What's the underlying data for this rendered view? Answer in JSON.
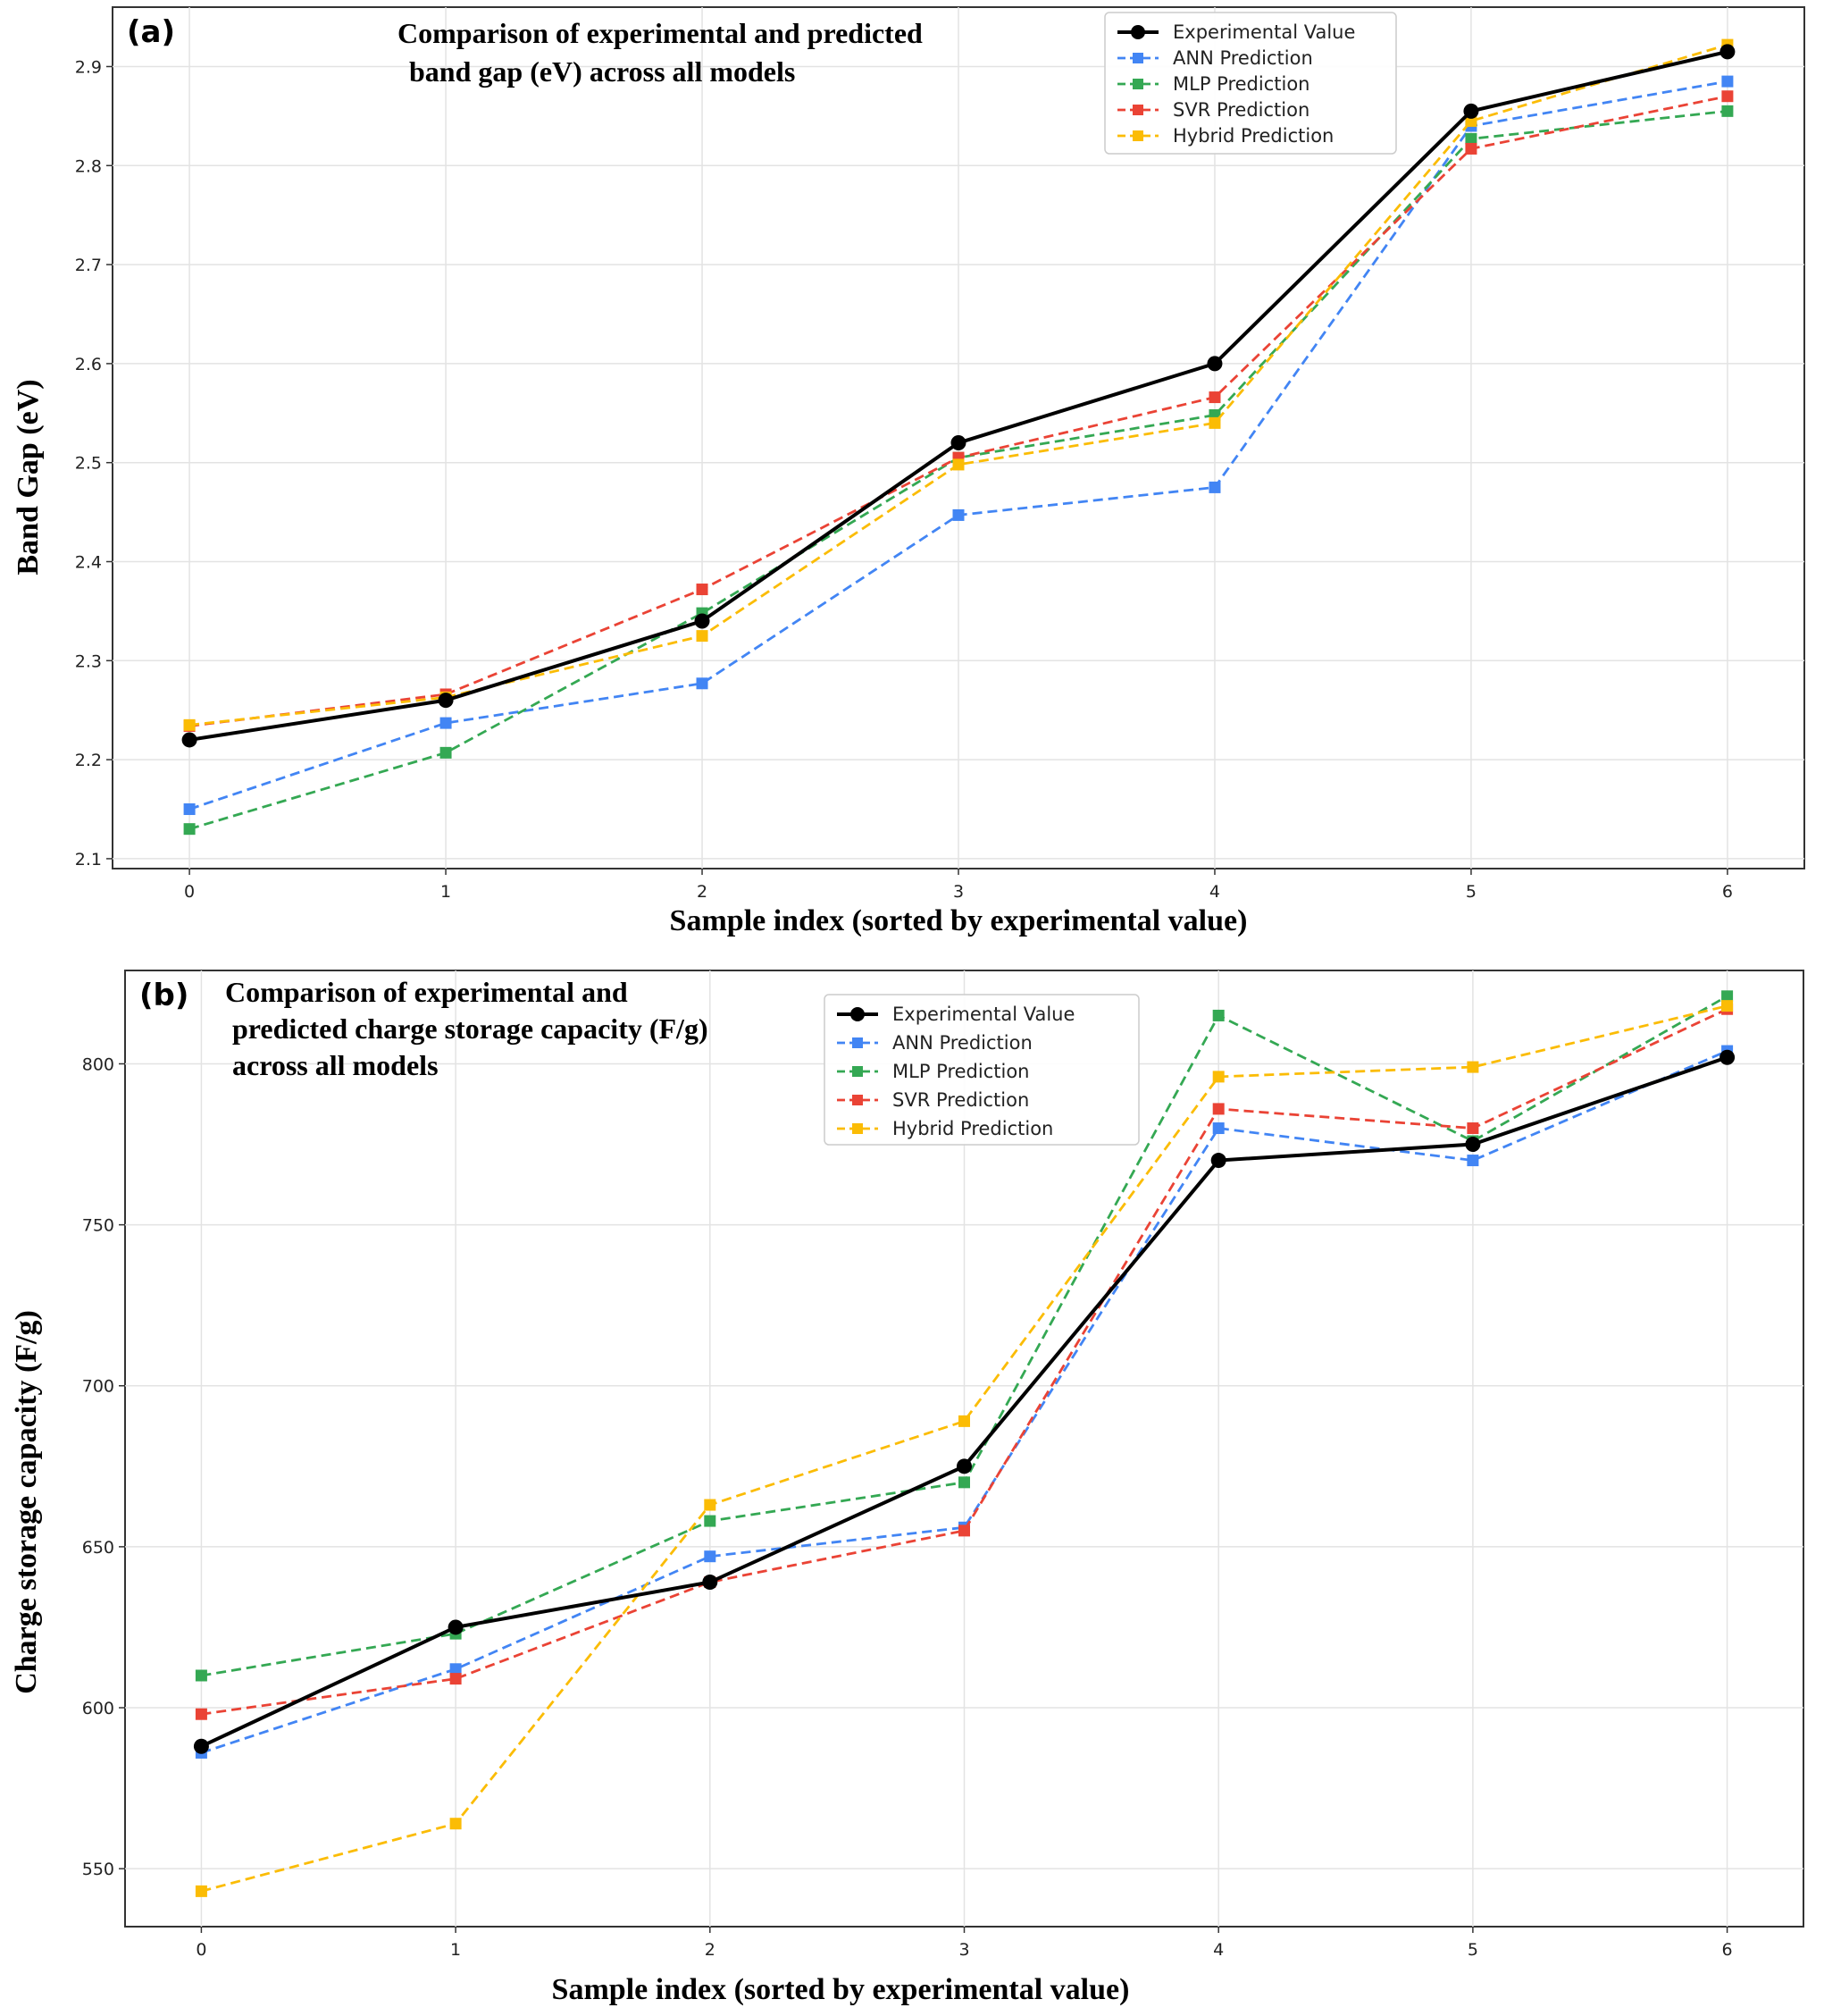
{
  "chart_data": [
    {
      "type": "line",
      "panel_label": "(a)",
      "title": [
        "Comparison of experimental and predicted",
        "band gap (eV) across all  models"
      ],
      "xlabel": "Sample index (sorted by experimental value)",
      "ylabel": "Band Gap (eV)",
      "x": [
        0,
        1,
        2,
        3,
        4,
        5,
        6
      ],
      "xlim": [
        -0.3,
        6.3
      ],
      "ylim": [
        2.09,
        2.96
      ],
      "yticks": [
        2.1,
        2.2,
        2.3,
        2.4,
        2.5,
        2.6,
        2.7,
        2.8,
        2.9
      ],
      "ytick_labels": [
        "2.1",
        "2.2",
        "2.3",
        "2.4",
        "2.5",
        "2.6",
        "2.7",
        "2.8",
        "2.9"
      ],
      "xtick_labels": [
        "0",
        "1",
        "2",
        "3",
        "4",
        "5",
        "6"
      ],
      "grid": true,
      "legend_position": "top-right",
      "series": [
        {
          "name": "Experimental Value",
          "color": "#000000",
          "style": "solid",
          "marker": "circle",
          "values": [
            2.22,
            2.26,
            2.34,
            2.52,
            2.6,
            2.855,
            2.915
          ]
        },
        {
          "name": "ANN Prediction",
          "color": "#4285F4",
          "style": "dashed",
          "marker": "square",
          "values": [
            2.15,
            2.237,
            2.277,
            2.447,
            2.475,
            2.84,
            2.885
          ]
        },
        {
          "name": "MLP Prediction",
          "color": "#34A853",
          "style": "dashed",
          "marker": "square",
          "values": [
            2.13,
            2.207,
            2.348,
            2.505,
            2.548,
            2.827,
            2.855
          ]
        },
        {
          "name": "SVR Prediction",
          "color": "#EA4335",
          "style": "dashed",
          "marker": "square",
          "values": [
            2.234,
            2.266,
            2.372,
            2.505,
            2.566,
            2.817,
            2.87
          ]
        },
        {
          "name": "Hybrid Prediction",
          "color": "#FBBC05",
          "style": "dashed",
          "marker": "square",
          "values": [
            2.235,
            2.263,
            2.325,
            2.498,
            2.54,
            2.845,
            2.922
          ]
        }
      ]
    },
    {
      "type": "line",
      "panel_label": "(b)",
      "title": [
        "Comparison of experimental and",
        " predicted charge storage capacity (F/g)",
        " across all models"
      ],
      "xlabel": "Sample index (sorted by experimental value)",
      "ylabel": "Charge storage capacity (F/g)",
      "x": [
        0,
        1,
        2,
        3,
        4,
        5,
        6
      ],
      "xlim": [
        -0.3,
        6.3
      ],
      "ylim": [
        532,
        829
      ],
      "yticks": [
        550,
        600,
        650,
        700,
        750,
        800
      ],
      "ytick_labels": [
        "550",
        "600",
        "650",
        "700",
        "750",
        "800"
      ],
      "xtick_labels": [
        "0",
        "1",
        "2",
        "3",
        "4",
        "5",
        "6"
      ],
      "grid": true,
      "legend_position": "top-center",
      "series": [
        {
          "name": "Experimental Value",
          "color": "#000000",
          "style": "solid",
          "marker": "circle",
          "values": [
            588,
            625,
            639,
            675,
            770,
            775,
            802
          ]
        },
        {
          "name": "ANN Prediction",
          "color": "#4285F4",
          "style": "dashed",
          "marker": "square",
          "values": [
            586,
            612,
            647,
            656,
            780,
            770,
            804
          ]
        },
        {
          "name": "MLP Prediction",
          "color": "#34A853",
          "style": "dashed",
          "marker": "square",
          "values": [
            610,
            623,
            658,
            670,
            815,
            776,
            821
          ]
        },
        {
          "name": "SVR Prediction",
          "color": "#EA4335",
          "style": "dashed",
          "marker": "square",
          "values": [
            598,
            609,
            639,
            655,
            786,
            780,
            817
          ]
        },
        {
          "name": "Hybrid Prediction",
          "color": "#FBBC05",
          "style": "dashed",
          "marker": "square",
          "values": [
            543,
            564,
            663,
            689,
            796,
            799,
            818
          ]
        }
      ]
    }
  ]
}
